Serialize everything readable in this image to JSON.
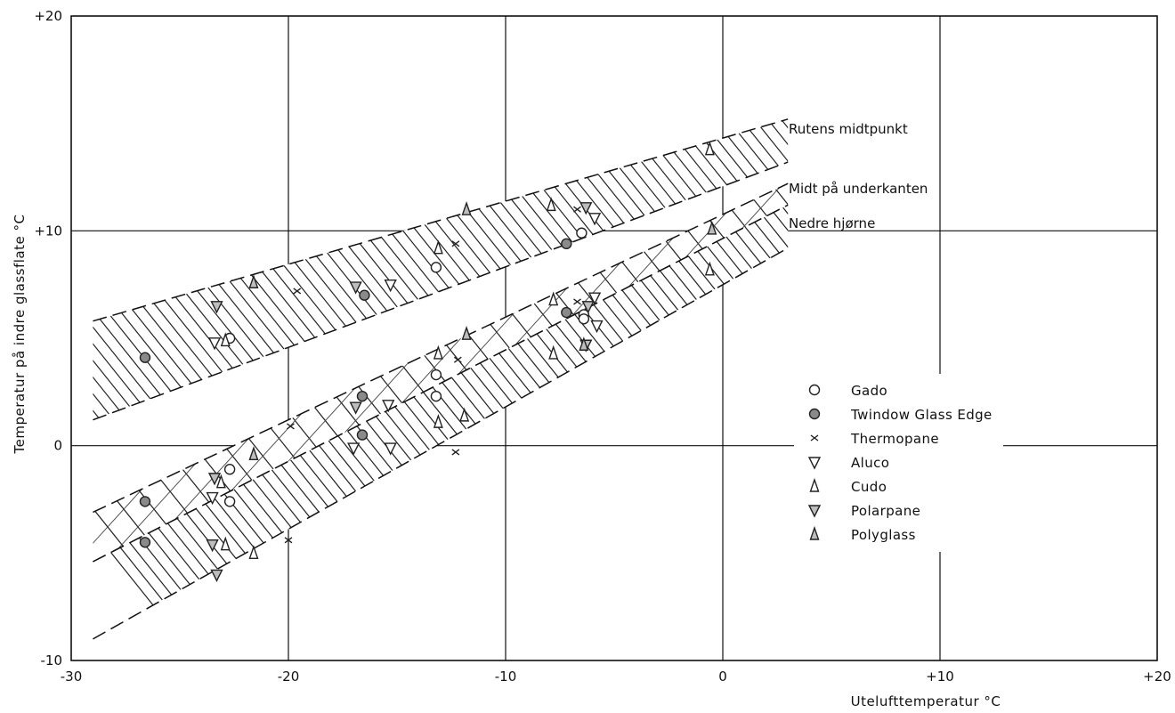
{
  "chart_data": {
    "type": "scatter",
    "title": "",
    "xlabel": "Utelufttemperatur °C",
    "ylabel": "Temperatur på indre glassflate °C",
    "xlim": [
      -30,
      20
    ],
    "ylim": [
      -10,
      20
    ],
    "x_tick_labels": [
      "-30",
      "-20",
      "-10",
      "0",
      "+10",
      "+20"
    ],
    "y_tick_labels": [
      "-10",
      "0",
      "+10",
      "+20"
    ],
    "x_tick_values": [
      -30,
      -20,
      -10,
      0,
      10,
      20
    ],
    "y_tick_values": [
      -10,
      0,
      10,
      20
    ],
    "grid": true,
    "legend_position": "right",
    "bands": [
      {
        "label": "Rutens midtpunkt",
        "x": [
          -29,
          3
        ],
        "upper": [
          5.8,
          15.2
        ],
        "lower": [
          1.2,
          13.2
        ],
        "hatch": "dense"
      },
      {
        "label": "Midt på underkanten",
        "x": [
          -29,
          3
        ],
        "upper": [
          -3.1,
          12.2
        ],
        "lower": [
          -5.4,
          11.2
        ],
        "hatch": "sparse"
      },
      {
        "label": "Nedre hjørne",
        "x": [
          -29,
          3
        ],
        "upper": [
          -5.4,
          11.2
        ],
        "lower": [
          -9,
          9.2
        ],
        "hatch": "dense"
      }
    ],
    "series": [
      {
        "name": "Gado",
        "marker": "circle",
        "points": [
          [
            -22.7,
            5
          ],
          [
            -13.2,
            8.3
          ],
          [
            -6.5,
            9.9
          ],
          [
            -6.4,
            6.1
          ],
          [
            -6.4,
            5.9
          ],
          [
            -13.2,
            3.3
          ],
          [
            -13.2,
            2.3
          ],
          [
            -22.7,
            -1.1
          ],
          [
            -22.7,
            -2.6
          ]
        ]
      },
      {
        "name": "Twindow Glass Edge",
        "marker": "filled-circle",
        "points": [
          [
            -26.6,
            4.1
          ],
          [
            -16.5,
            7
          ],
          [
            -7.2,
            9.4
          ],
          [
            -7.2,
            6.2
          ],
          [
            -16.6,
            2.3
          ],
          [
            -16.6,
            0.5
          ],
          [
            -26.6,
            -2.6
          ],
          [
            -26.6,
            -4.5
          ]
        ]
      },
      {
        "name": "Thermopane",
        "marker": "cross",
        "points": [
          [
            -19.6,
            7.2
          ],
          [
            -12.3,
            9.4
          ],
          [
            -6.7,
            11
          ],
          [
            -12.2,
            4
          ],
          [
            -6.7,
            6.7
          ],
          [
            -19.9,
            0.9
          ],
          [
            -12.3,
            -0.3
          ],
          [
            -20,
            -4.4
          ]
        ]
      },
      {
        "name": "Aluco",
        "marker": "triangle-down",
        "points": [
          [
            -23.4,
            4.8
          ],
          [
            -15.3,
            7.5
          ],
          [
            -5.9,
            10.6
          ],
          [
            -15.4,
            1.9
          ],
          [
            -5.8,
            5.6
          ],
          [
            -5.9,
            6.9
          ],
          [
            -23.5,
            -2.4
          ],
          [
            -15.3,
            -0.1
          ],
          [
            -17,
            -0.1
          ]
        ]
      },
      {
        "name": "Cudo",
        "marker": "triangle-up",
        "points": [
          [
            -22.9,
            4.9
          ],
          [
            -13.1,
            9.2
          ],
          [
            -7.9,
            11.2
          ],
          [
            -0.6,
            13.8
          ],
          [
            -13.1,
            4.3
          ],
          [
            -7.8,
            6.8
          ],
          [
            -7.8,
            4.3
          ],
          [
            -0.6,
            8.2
          ],
          [
            -23.1,
            -1.7
          ],
          [
            -13.1,
            1.1
          ],
          [
            -11.9,
            1.4
          ],
          [
            -22.9,
            -4.6
          ],
          [
            -21.6,
            -5
          ]
        ]
      },
      {
        "name": "Polarpane",
        "marker": "triangle-down-bold",
        "points": [
          [
            -23.3,
            6.5
          ],
          [
            -16.9,
            7.4
          ],
          [
            -6.3,
            11.1
          ],
          [
            -16.9,
            1.8
          ],
          [
            -6.3,
            4.7
          ],
          [
            -6.2,
            6.5
          ],
          [
            -23.4,
            -1.5
          ],
          [
            -23.5,
            -4.6
          ],
          [
            -23.3,
            -6
          ]
        ]
      },
      {
        "name": "Polyglass",
        "marker": "triangle-up-bold",
        "points": [
          [
            -21.6,
            7.6
          ],
          [
            -11.8,
            11
          ],
          [
            -0.5,
            10.1
          ],
          [
            -11.8,
            5.2
          ],
          [
            -21.6,
            -0.4
          ],
          [
            -6.4,
            4.7
          ]
        ]
      }
    ]
  }
}
